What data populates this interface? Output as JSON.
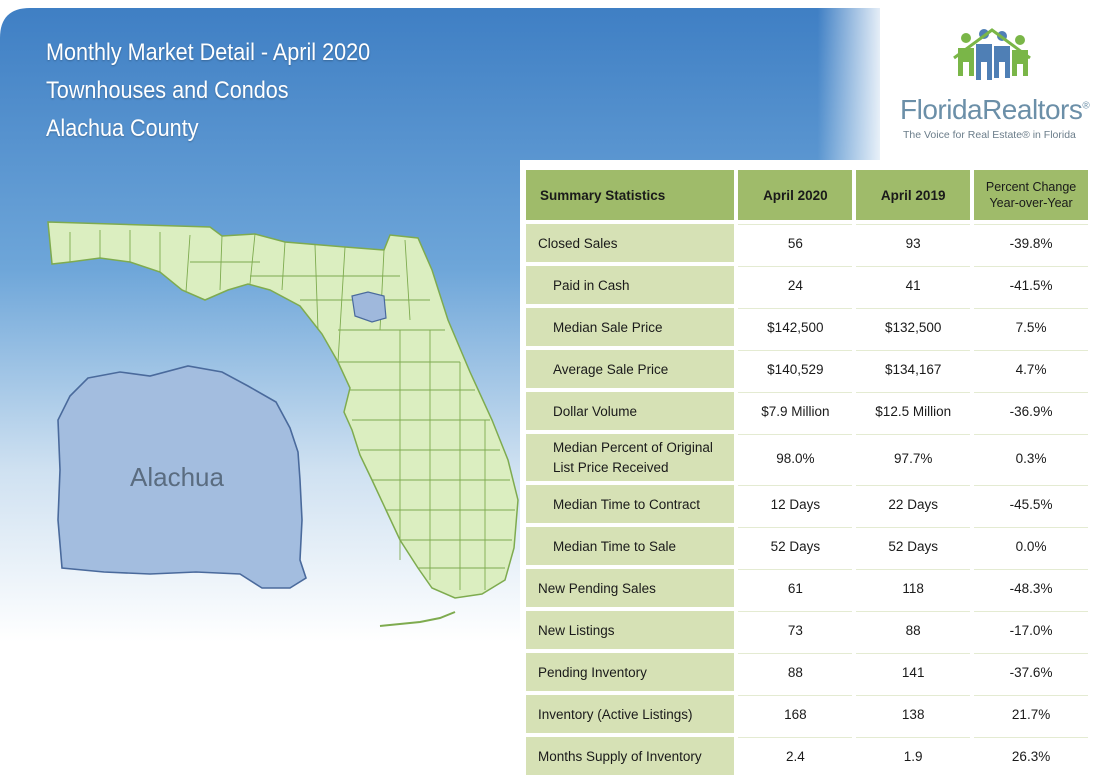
{
  "header": {
    "line1": "Monthly Market Detail - April 2020",
    "line2": "Townhouses and Condos",
    "line3": "Alachua County"
  },
  "logo": {
    "name": "FloridaRealtors",
    "registered": "®",
    "tagline": "The Voice for Real Estate® in Florida"
  },
  "map": {
    "county_label": "Alachua",
    "colors": {
      "state_fill": "#dbeec0",
      "state_stroke": "#7eab4f",
      "county_fill": "#9fb8dc",
      "county_stroke": "#4a6a9c"
    }
  },
  "table": {
    "headers": [
      "Summary Statistics",
      "April 2020",
      "April 2019",
      "Percent Change",
      "Year-over-Year"
    ],
    "rows": [
      {
        "label": "Closed Sales",
        "a": "56",
        "b": "93",
        "c": "-39.8%"
      },
      {
        "label": "Paid in Cash",
        "a": "24",
        "b": "41",
        "c": "-41.5%"
      },
      {
        "label": "Median Sale Price",
        "a": "$142,500",
        "b": "$132,500",
        "c": "7.5%"
      },
      {
        "label": "Average Sale Price",
        "a": "$140,529",
        "b": "$134,167",
        "c": "4.7%"
      },
      {
        "label": "Dollar Volume",
        "a": "$7.9 Million",
        "b": "$12.5 Million",
        "c": "-36.9%"
      },
      {
        "label": "Median Percent of Original",
        "label2": "List Price Received",
        "a": "98.0%",
        "b": "97.7%",
        "c": "0.3%"
      },
      {
        "label": "Median Time to Contract",
        "a": "12 Days",
        "b": "22 Days",
        "c": "-45.5%"
      },
      {
        "label": "Median Time to Sale",
        "a": "52 Days",
        "b": "52 Days",
        "c": "0.0%"
      },
      {
        "label": "New Pending Sales",
        "a": "61",
        "b": "118",
        "c": "-48.3%"
      },
      {
        "label": "New Listings",
        "a": "73",
        "b": "88",
        "c": "-17.0%"
      },
      {
        "label": "Pending Inventory",
        "a": "88",
        "b": "141",
        "c": "-37.6%"
      },
      {
        "label": "Inventory (Active Listings)",
        "a": "168",
        "b": "138",
        "c": "21.7%"
      },
      {
        "label": "Months Supply of Inventory",
        "a": "2.4",
        "b": "1.9",
        "c": "26.3%"
      }
    ]
  },
  "colors": {
    "header_bg": "#9fbb6a",
    "label_bg": "#d6e1b5",
    "banner_blue": "#5b93cf"
  }
}
